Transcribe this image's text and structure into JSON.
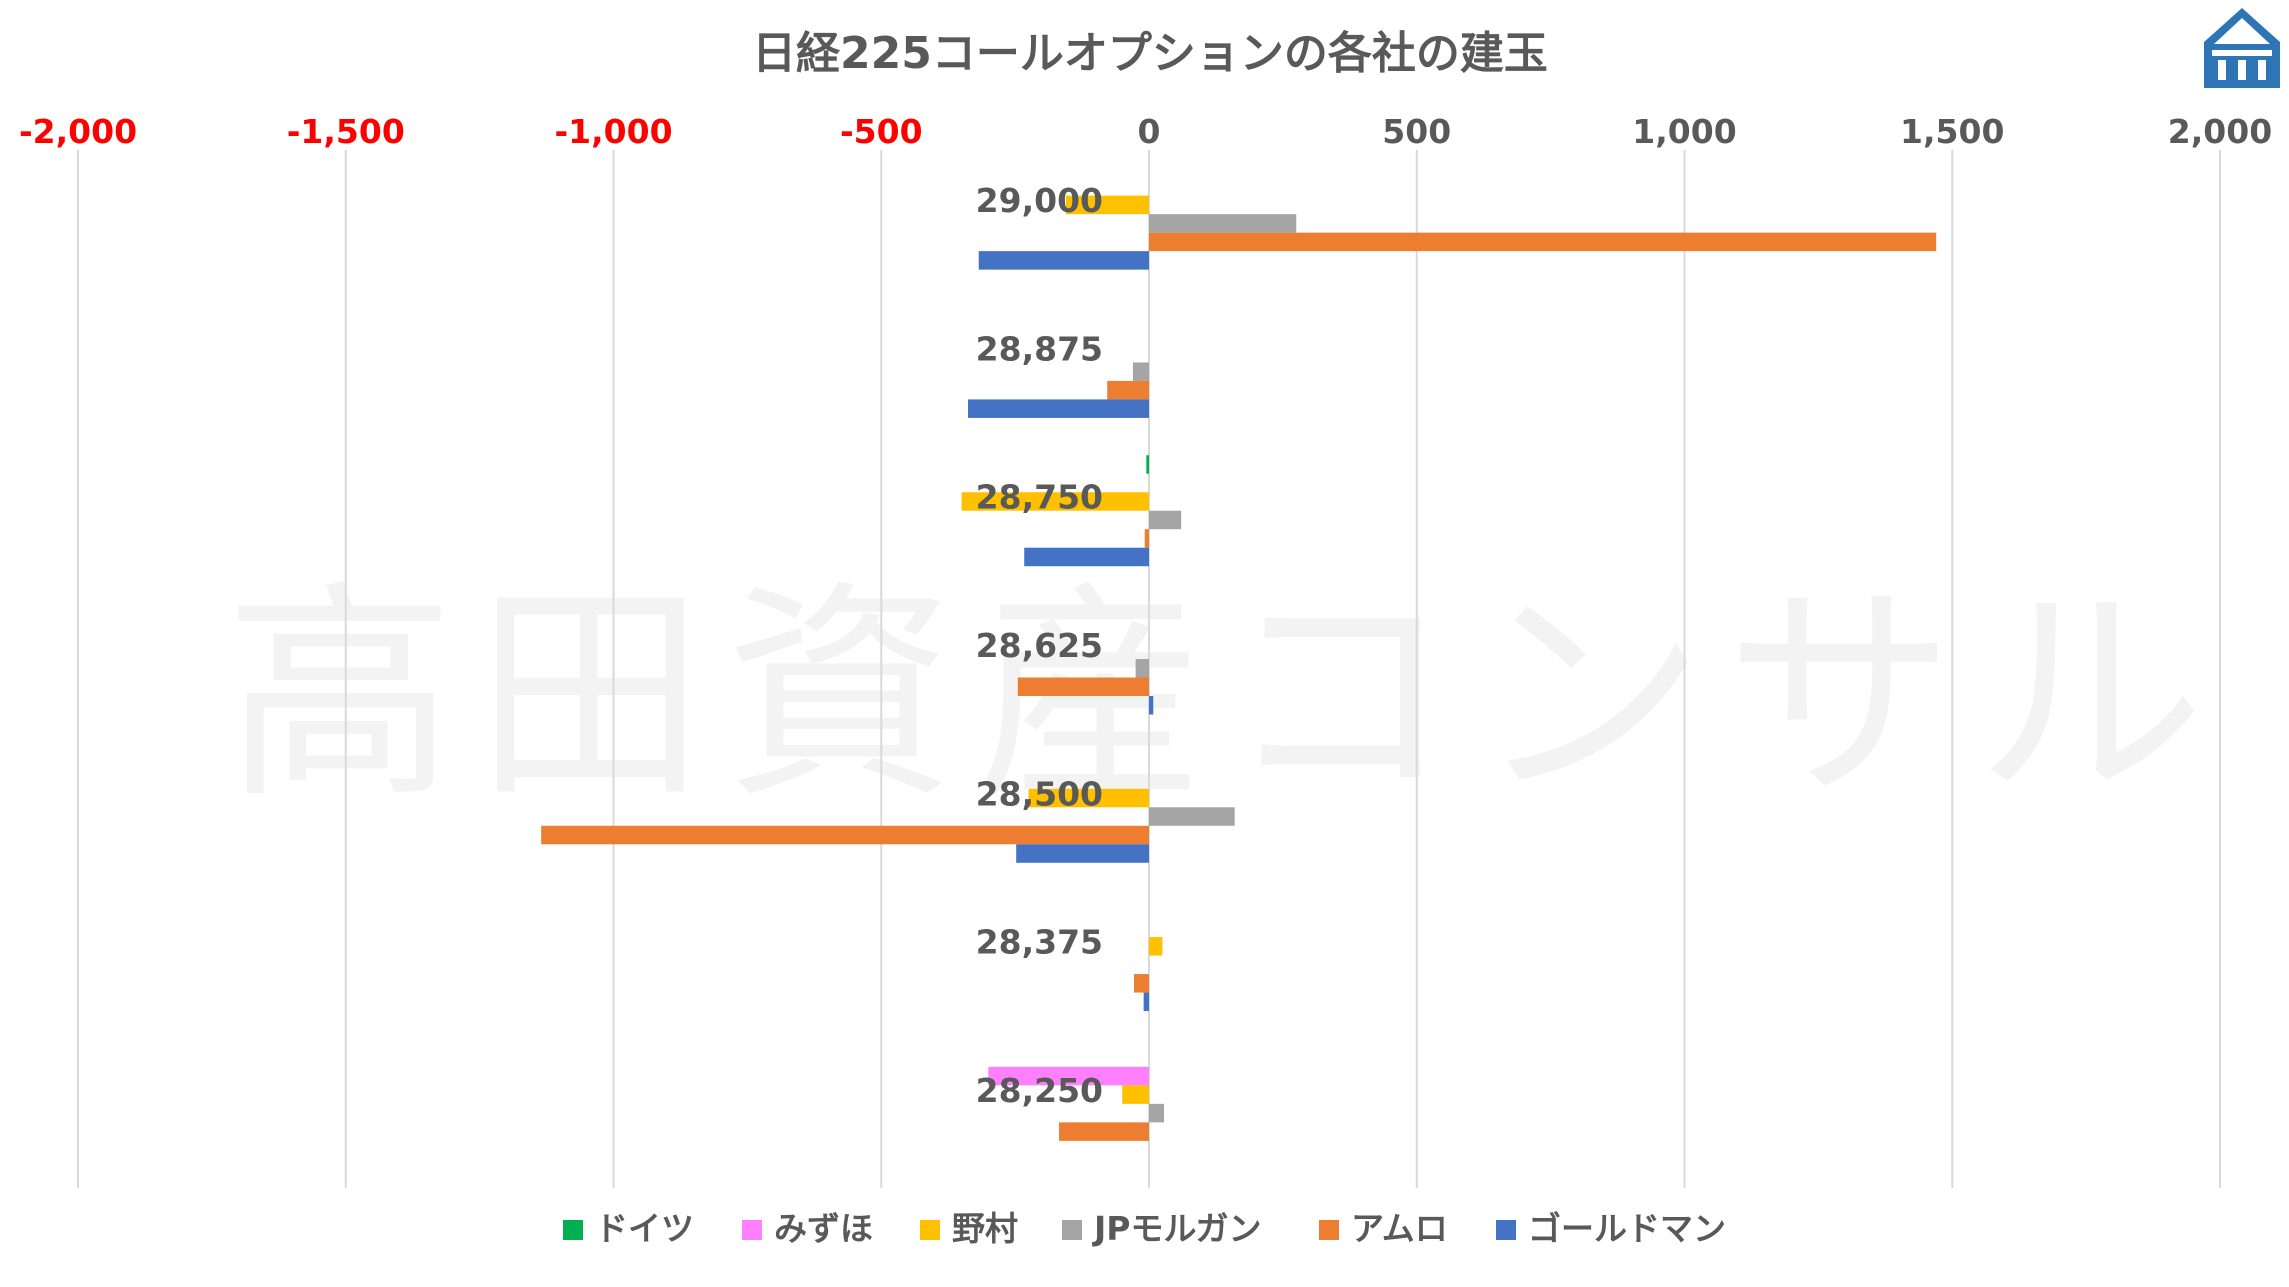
{
  "chart_data": {
    "type": "bar",
    "orientation": "horizontal",
    "title": "日経225コールオプションの各社の建玉",
    "watermark": "高田資産コンサル",
    "xlim": [
      -2000,
      2000
    ],
    "x_ticks": [
      -2000,
      -1500,
      -1000,
      -500,
      0,
      500,
      1000,
      1500,
      2000
    ],
    "x_tick_labels": [
      "-2,000",
      "-1,500",
      "-1,000",
      "-500",
      "0",
      "500",
      "1,000",
      "1,500",
      "2,000"
    ],
    "negative_tick_color": "#ff0000",
    "positive_tick_color": "#595959",
    "grid": true,
    "legend_position": "bottom",
    "categories": [
      "29,000",
      "28,875",
      "28,750",
      "28,625",
      "28,500",
      "28,375",
      "28,250"
    ],
    "series": [
      {
        "name": "ドイツ",
        "color": "#00b050",
        "values": [
          0,
          0,
          -5,
          0,
          0,
          0,
          0
        ]
      },
      {
        "name": "みずほ",
        "color": "#ff80ff",
        "values": [
          0,
          0,
          0,
          0,
          0,
          0,
          -300
        ]
      },
      {
        "name": "野村",
        "color": "#ffc000",
        "values": [
          -155,
          0,
          -350,
          0,
          -225,
          25,
          -50
        ]
      },
      {
        "name": "JPモルガン",
        "color": "#a5a5a5",
        "values": [
          275,
          -30,
          60,
          -25,
          160,
          0,
          28
        ]
      },
      {
        "name": "アムロ",
        "color": "#ed7d31",
        "values": [
          1470,
          -78,
          -8,
          -245,
          -1135,
          -28,
          -168
        ]
      },
      {
        "name": "ゴールドマン",
        "color": "#4472c4",
        "values": [
          -318,
          -338,
          -233,
          8,
          -248,
          -10,
          0
        ]
      }
    ]
  },
  "logo": {
    "name": "house-logo-icon",
    "color": "#2e75b6"
  }
}
